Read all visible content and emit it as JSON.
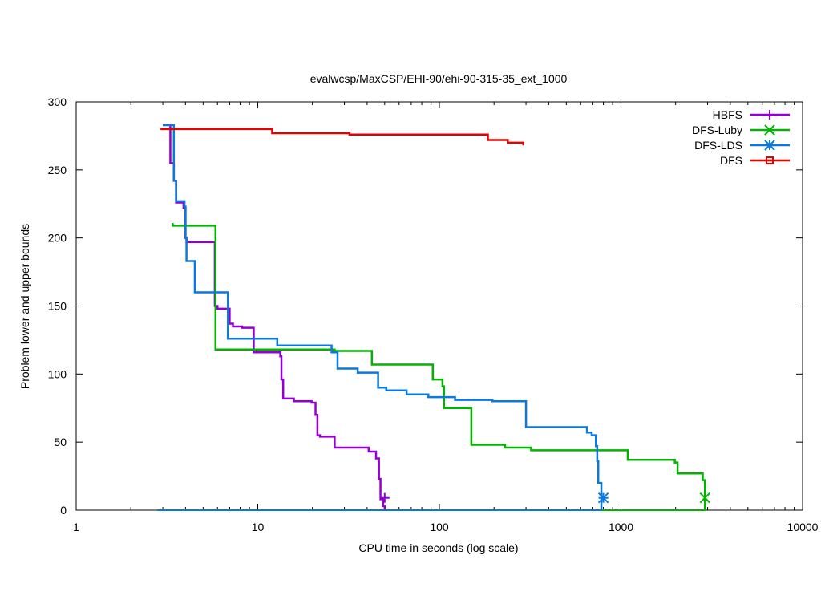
{
  "chart_data": {
    "type": "line",
    "title": "evalwcsp/MaxCSP/EHI-90/ehi-90-315-35_ext_1000",
    "xlabel": "CPU time in seconds (log scale)",
    "ylabel": "Problem lower and upper bounds",
    "xscale": "log",
    "xlim": [
      1,
      10000
    ],
    "ylim": [
      0,
      300
    ],
    "xticks": [
      1,
      10,
      100,
      1000,
      10000
    ],
    "xtick_labels": [
      "1",
      "10",
      "100",
      "1000",
      "10000"
    ],
    "yticks": [
      0,
      50,
      100,
      150,
      200,
      250,
      300
    ],
    "ytick_labels": [
      "0",
      "50",
      "100",
      "150",
      "200",
      "250",
      "300"
    ],
    "legend_position": "top-right",
    "series": [
      {
        "name": "HBFS",
        "color": "#9400d3",
        "marker": "plus",
        "upper": [
          [
            3.0,
            283
          ],
          [
            3.3,
            283
          ],
          [
            3.3,
            255
          ],
          [
            3.45,
            255
          ],
          [
            3.45,
            242
          ],
          [
            3.55,
            242
          ],
          [
            3.55,
            226
          ],
          [
            3.9,
            226
          ],
          [
            3.9,
            222
          ],
          [
            4.0,
            222
          ],
          [
            4.0,
            200
          ],
          [
            4.05,
            200
          ],
          [
            4.05,
            197
          ],
          [
            5.8,
            197
          ],
          [
            5.8,
            150
          ],
          [
            6.0,
            150
          ],
          [
            6.0,
            148
          ],
          [
            7.0,
            148
          ],
          [
            7.0,
            137
          ],
          [
            7.3,
            137
          ],
          [
            7.3,
            135
          ],
          [
            8.2,
            135
          ],
          [
            8.2,
            134
          ],
          [
            9.5,
            134
          ],
          [
            9.5,
            116
          ],
          [
            13.3,
            116
          ],
          [
            13.3,
            113
          ],
          [
            13.5,
            113
          ],
          [
            13.5,
            96
          ],
          [
            13.8,
            96
          ],
          [
            13.8,
            82
          ],
          [
            15.8,
            82
          ],
          [
            15.8,
            80
          ],
          [
            19.8,
            80
          ],
          [
            19.8,
            79
          ],
          [
            20.8,
            79
          ],
          [
            20.8,
            70
          ],
          [
            21.3,
            70
          ],
          [
            21.3,
            55
          ],
          [
            22.0,
            55
          ],
          [
            22.0,
            54
          ],
          [
            26.5,
            54
          ],
          [
            26.5,
            46
          ],
          [
            40.8,
            46
          ],
          [
            40.8,
            43
          ],
          [
            44.8,
            43
          ],
          [
            44.8,
            38
          ],
          [
            46.5,
            38
          ],
          [
            46.5,
            23
          ],
          [
            47.4,
            23
          ],
          [
            47.4,
            8
          ],
          [
            49.0,
            8
          ],
          [
            49.0,
            3
          ],
          [
            50.0,
            3
          ],
          [
            50.0,
            0
          ]
        ],
        "lower": [
          [
            2.8,
            0
          ],
          [
            50.0,
            0
          ]
        ],
        "end_marker": [
          50.0,
          9
        ]
      },
      {
        "name": "DFS-Luby",
        "color": "#00b400",
        "marker": "x",
        "upper": [
          [
            3.4,
            211
          ],
          [
            3.4,
            209
          ],
          [
            5.85,
            209
          ],
          [
            5.85,
            118
          ],
          [
            26.5,
            118
          ],
          [
            26.5,
            117
          ],
          [
            42.5,
            117
          ],
          [
            42.5,
            107
          ],
          [
            92.0,
            107
          ],
          [
            92.0,
            96
          ],
          [
            104.0,
            96
          ],
          [
            104.0,
            91
          ],
          [
            106.0,
            91
          ],
          [
            106.0,
            75
          ],
          [
            150.0,
            75
          ],
          [
            150.0,
            48
          ],
          [
            230.0,
            48
          ],
          [
            230.0,
            46
          ],
          [
            320.0,
            46
          ],
          [
            320.0,
            44
          ],
          [
            1090.0,
            44
          ],
          [
            1090.0,
            37
          ],
          [
            1980.0,
            37
          ],
          [
            1980.0,
            35
          ],
          [
            2050.0,
            35
          ],
          [
            2050.0,
            27
          ],
          [
            2820.0,
            27
          ],
          [
            2820.0,
            22
          ],
          [
            2900.0,
            22
          ],
          [
            2900.0,
            0
          ]
        ],
        "lower": [
          [
            2.8,
            0
          ],
          [
            2900.0,
            0
          ]
        ],
        "end_marker": [
          2900.0,
          9
        ]
      },
      {
        "name": "DFS-LDS",
        "color": "#0a78dc",
        "marker": "star",
        "upper": [
          [
            3.0,
            283
          ],
          [
            3.45,
            283
          ],
          [
            3.45,
            242
          ],
          [
            3.55,
            242
          ],
          [
            3.55,
            227
          ],
          [
            3.95,
            227
          ],
          [
            3.95,
            223
          ],
          [
            4.0,
            223
          ],
          [
            4.0,
            200
          ],
          [
            4.05,
            200
          ],
          [
            4.05,
            183
          ],
          [
            4.5,
            183
          ],
          [
            4.5,
            160
          ],
          [
            6.85,
            160
          ],
          [
            6.85,
            126
          ],
          [
            12.8,
            126
          ],
          [
            12.8,
            121
          ],
          [
            25.5,
            121
          ],
          [
            25.5,
            116
          ],
          [
            27.5,
            116
          ],
          [
            27.5,
            104
          ],
          [
            35.5,
            104
          ],
          [
            35.5,
            101
          ],
          [
            46.0,
            101
          ],
          [
            46.0,
            90
          ],
          [
            51.0,
            90
          ],
          [
            51.0,
            88
          ],
          [
            66.0,
            88
          ],
          [
            66.0,
            85
          ],
          [
            87.0,
            85
          ],
          [
            87.0,
            83
          ],
          [
            122.0,
            83
          ],
          [
            122.0,
            81
          ],
          [
            196.0,
            81
          ],
          [
            196.0,
            80
          ],
          [
            300.0,
            80
          ],
          [
            300.0,
            61
          ],
          [
            650.0,
            61
          ],
          [
            650.0,
            57
          ],
          [
            690.0,
            57
          ],
          [
            690.0,
            55
          ],
          [
            728.0,
            55
          ],
          [
            728.0,
            47
          ],
          [
            740.0,
            47
          ],
          [
            740.0,
            36
          ],
          [
            750.0,
            36
          ],
          [
            750.0,
            20
          ],
          [
            780.0,
            20
          ],
          [
            780.0,
            0
          ]
        ],
        "lower": [
          [
            2.8,
            0
          ],
          [
            780.0,
            0
          ]
        ],
        "end_marker": [
          800.0,
          9
        ]
      },
      {
        "name": "DFS",
        "color": "#e60000",
        "marker": "square",
        "upper": [
          [
            2.95,
            281
          ],
          [
            2.95,
            280
          ],
          [
            12.0,
            280
          ],
          [
            12.0,
            277
          ],
          [
            32.0,
            277
          ],
          [
            32.0,
            276
          ],
          [
            185.0,
            276
          ],
          [
            185.0,
            272
          ],
          [
            238.0,
            272
          ],
          [
            238.0,
            270
          ],
          [
            290.0,
            270
          ],
          [
            290.0,
            268
          ]
        ],
        "lower": [],
        "end_marker": null
      }
    ]
  }
}
